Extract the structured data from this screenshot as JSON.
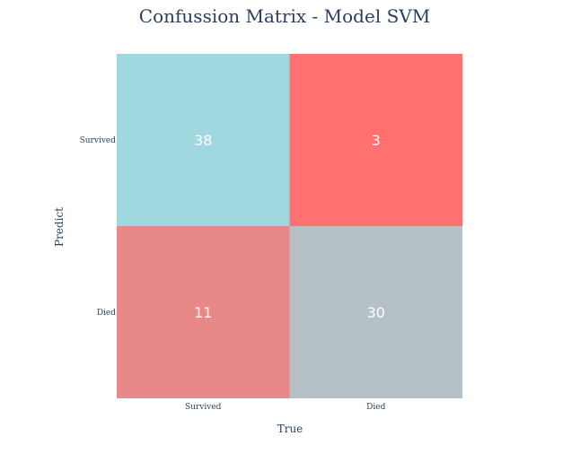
{
  "chart_data": {
    "type": "heatmap",
    "title": "Confussion Matrix - Model SVM",
    "xlabel": "True",
    "ylabel": "Predict",
    "x_categories": [
      "Survived",
      "Died"
    ],
    "y_categories": [
      "Survived",
      "Died"
    ],
    "values": [
      [
        38,
        3
      ],
      [
        11,
        30
      ]
    ],
    "colors": [
      [
        "#a0d8e0",
        "#ff7070"
      ],
      [
        "#e88888",
        "#b5c0c7"
      ]
    ],
    "grid": false
  }
}
